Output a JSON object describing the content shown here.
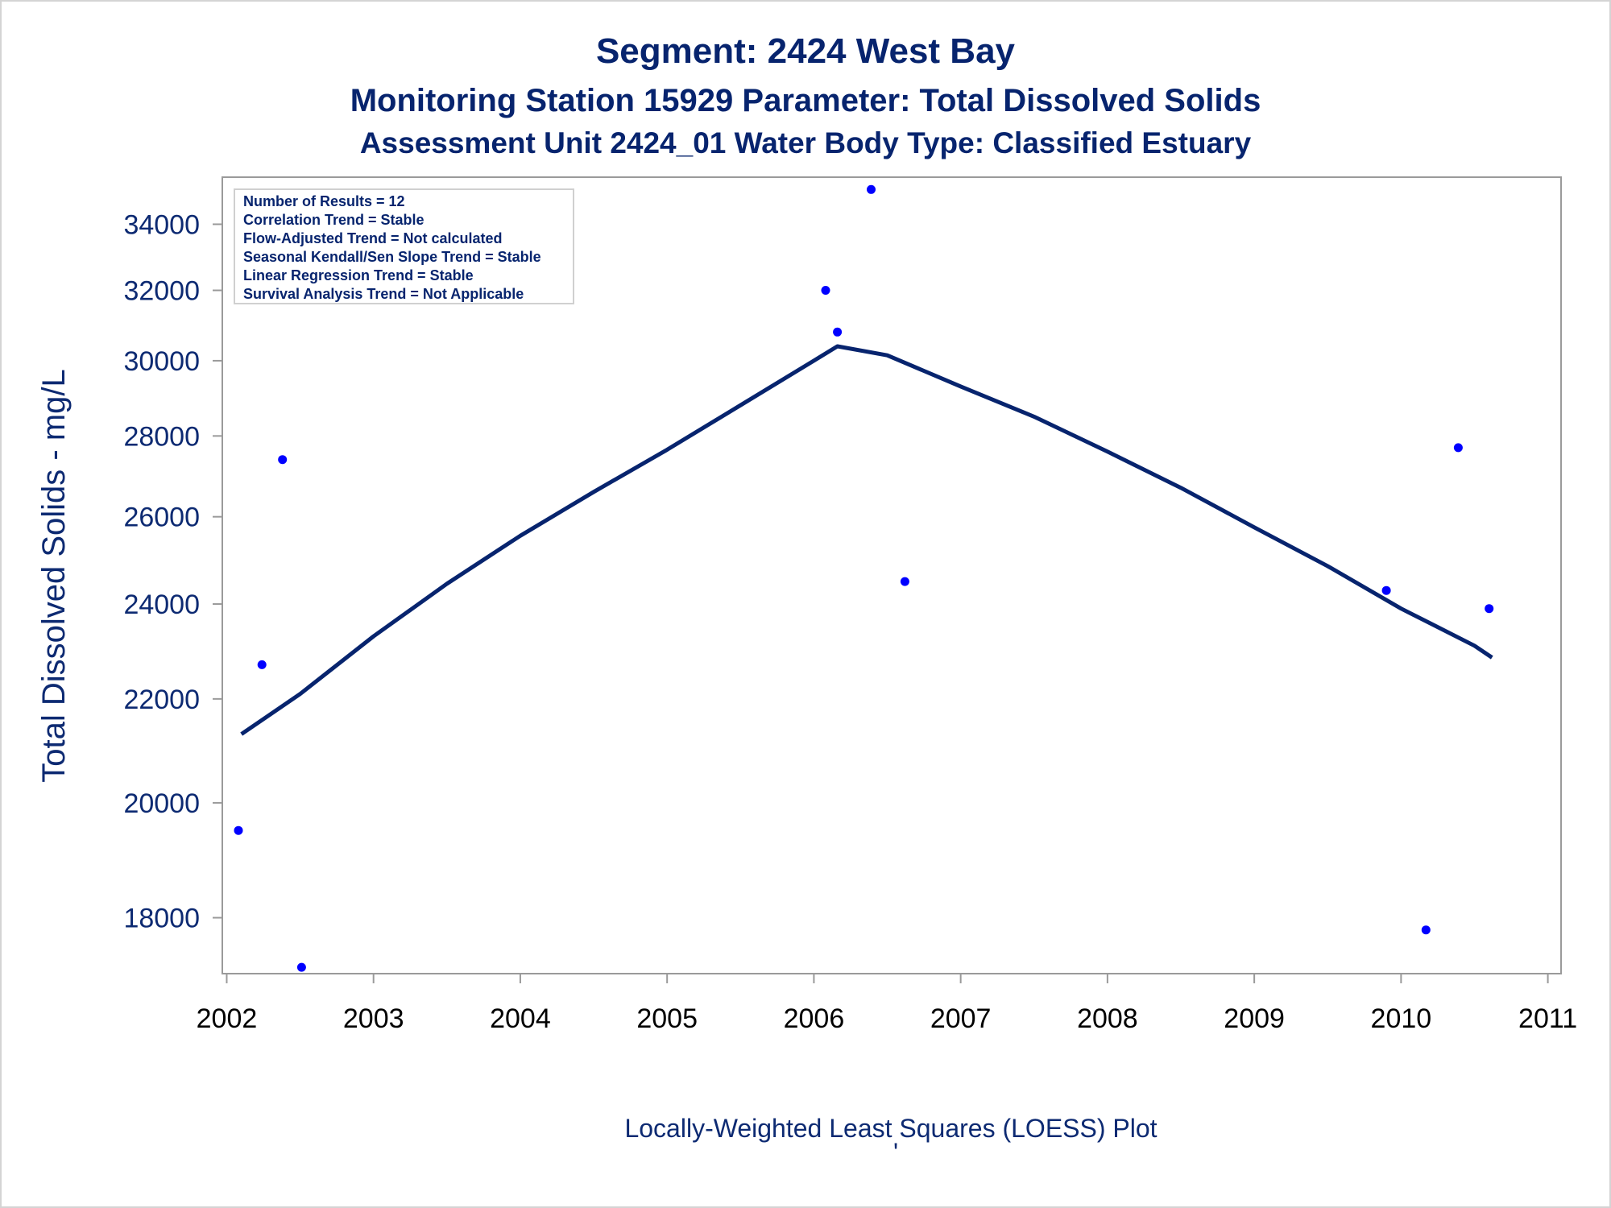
{
  "titles": {
    "line1": "Segment: 2424  West Bay",
    "line2": "Monitoring Station 15929 Parameter: Total Dissolved Solids",
    "line3": "Assessment Unit 2424_01   Water Body Type: Classified Estuary"
  },
  "footnote": "Locally-Weighted Least Squares (LOESS) Plot",
  "footnote_mark": "'",
  "stats_box": [
    "Number of Results = 12",
    "Correlation Trend = Stable",
    "Flow-Adjusted Trend = Not calculated",
    "Seasonal Kendall/Sen Slope Trend = Stable",
    "Linear Regression Trend = Stable",
    "Survival Analysis Trend = Not Applicable"
  ],
  "colors": {
    "points": "#0000ff",
    "loess_line": "#07246e",
    "text": "#07246e",
    "axis": "#9a9a9a"
  },
  "chart_data": {
    "type": "scatter",
    "title": "Segment: 2424  West Bay",
    "subtitle": "Monitoring Station 15929 Parameter: Total Dissolved Solids",
    "xlabel": "",
    "ylabel": "Total Dissolved Solids - mg/L",
    "x_ticks": [
      "2002",
      "2003",
      "2004",
      "2005",
      "2006",
      "2007",
      "2008",
      "2009",
      "2010",
      "2011"
    ],
    "y_ticks": [
      "18000",
      "20000",
      "22000",
      "24000",
      "26000",
      "28000",
      "30000",
      "32000",
      "34000"
    ],
    "y_scale": "log",
    "xlim": [
      2001.97,
      2011.09
    ],
    "ylim": [
      17100,
      35500
    ],
    "grid": false,
    "series": [
      {
        "kind": "scatter",
        "x": [
          2002.08,
          2002.24,
          2002.38,
          2002.51,
          2006.08,
          2006.16,
          2006.39,
          2006.62,
          2009.9,
          2010.17,
          2010.39,
          2010.6
        ],
        "y": [
          19500,
          22700,
          27400,
          17200,
          32000,
          30800,
          35100,
          24500,
          24300,
          17800,
          27700,
          23900
        ]
      },
      {
        "kind": "line",
        "x": [
          2002.1,
          2002.5,
          2003.0,
          2003.5,
          2004.0,
          2004.5,
          2005.0,
          2005.5,
          2006.0,
          2006.16,
          2006.5,
          2007.0,
          2007.5,
          2008.0,
          2008.5,
          2009.0,
          2009.5,
          2010.0,
          2010.5,
          2010.62
        ],
        "y": [
          21300,
          22100,
          23300,
          24450,
          25550,
          26600,
          27650,
          28800,
          30000,
          30400,
          30150,
          29300,
          28500,
          27600,
          26700,
          25750,
          24850,
          23900,
          23100,
          22850
        ]
      }
    ]
  }
}
